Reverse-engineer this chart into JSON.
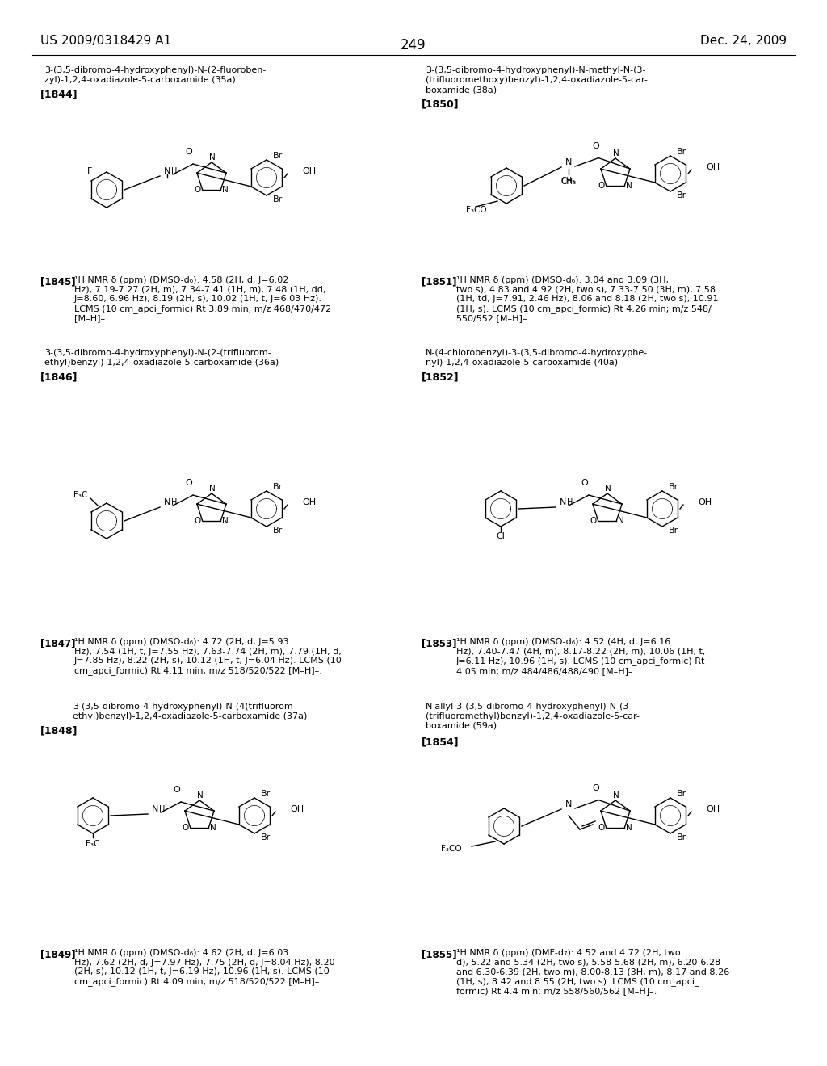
{
  "header_left": "US 2009/0318429 A1",
  "header_right": "Dec. 24, 2009",
  "page_number": "249",
  "bg_color": "#ffffff",
  "entries": [
    {
      "col": 0,
      "row": 0,
      "name": "3-(3,5-dibromo-4-hydroxyphenyl)-N-(2-fluoroben-\nzyl)-1,2,4-oxadiazole-5-carboxamide (35a)",
      "ref": "[1844]",
      "nmr_ref": "[1845]",
      "nmr": "¹H NMR δ (ppm) (DMSO-d₆): 4.58 (2H, d, J=6.02\nHz), 7.19-7.27 (2H, m), 7.34-7.41 (1H, m), 7.48 (1H, dd,\nJ=8.60, 6.96 Hz), 8.19 (2H, s), 10.02 (1H, t, J=6.03 Hz).\nLCMS (10 cm_apci_formic) Rt 3.89 min; m/z 468/470/472\n[M–H]–."
    },
    {
      "col": 1,
      "row": 0,
      "name": "3-(3,5-dibromo-4-hydroxyphenyl)-N-methyl-N-(3-\n(trifluoromethoxy)benzyl)-1,2,4-oxadiazole-5-car-\nboxamide (38a)",
      "ref": "[1850]",
      "nmr_ref": "[1851]",
      "nmr": "¹H NMR δ (ppm) (DMSO-d₆): 3.04 and 3.09 (3H,\ntwo s), 4.83 and 4.92 (2H, two s), 7.33-7.50 (3H, m), 7.58\n(1H, td, J=7.91, 2.46 Hz), 8.06 and 8.18 (2H, two s), 10.91\n(1H, s). LCMS (10 cm_apci_formic) Rt 4.26 min; m/z 548/\n550/552 [M–H]–."
    },
    {
      "col": 0,
      "row": 1,
      "name": "3-(3,5-dibromo-4-hydroxyphenyl)-N-(2-(trifluorom-\nethyl)benzyl)-1,2,4-oxadiazole-5-carboxamide (36a)",
      "ref": "[1846]",
      "nmr_ref": "[1847]",
      "nmr": "¹H NMR δ (ppm) (DMSO-d₆): 4.72 (2H, d, J=5.93\nHz), 7.54 (1H, t, J=7.55 Hz), 7.63-7.74 (2H, m), 7.79 (1H, d,\nJ=7.85 Hz), 8.22 (2H, s), 10.12 (1H, t, J=6.04 Hz). LCMS (10\ncm_apci_formic) Rt 4.11 min; m/z 518/520/522 [M–H]–."
    },
    {
      "col": 1,
      "row": 1,
      "name": "N-(4-chlorobenzyl)-3-(3,5-dibromo-4-hydroxyphe-\nnyl)-1,2,4-oxadiazole-5-carboxamide (40a)",
      "ref": "[1852]",
      "nmr_ref": "[1853]",
      "nmr": "¹H NMR δ (ppm) (DMSO-d₆): 4.52 (4H, d, J=6.16\nHz), 7.40-7.47 (4H, m), 8.17-8.22 (2H, m), 10.06 (1H, t,\nJ=6.11 Hz), 10.96 (1H, s). LCMS (10 cm_apci_formic) Rt\n4.05 min; m/z 484/486/488/490 [M–H]–."
    },
    {
      "col": 0,
      "row": 2,
      "name_pre": "3-(3,5-dibromo-4-hydroxyphenyl)-N-(4(trifluorom-\nethyl)benzyl)-1,2,4-oxadiazole-5-carboxamide (37a)",
      "ref": "[1848]",
      "nmr_ref": "[1849]",
      "nmr": "¹H NMR δ (ppm) (DMSO-d₆): 4.62 (2H, d, J=6.03\nHz), 7.62 (2H, d, J=7.97 Hz), 7.75 (2H, d, J=8.04 Hz), 8.20\n(2H, s), 10.12 (1H, t, J=6.19 Hz), 10.96 (1H, s). LCMS (10\ncm_apci_formic) Rt 4.09 min; m/z 518/520/522 [M–H]–."
    },
    {
      "col": 1,
      "row": 2,
      "name": "N-allyl-3-(3,5-dibromo-4-hydroxyphenyl)-N-(3-\n(trifluoromethyl)benzyl)-1,2,4-oxadiazole-5-car-\nboxamide (59a)",
      "ref": "[1854]",
      "nmr_ref": "[1855]",
      "nmr": "¹H NMR δ (ppm) (DMF-d₇): 4.52 and 4.72 (2H, two\nd), 5.22 and 5.34 (2H, two s), 5.58-5.68 (2H, m), 6.20-6.28\nand 6.30-6.39 (2H, two m), 8.00-8.13 (3H, m), 8.17 and 8.26\n(1H, s), 8.42 and 8.55 (2H, two s). LCMS (10 cm_apci_\nformic) Rt 4.4 min; m/z 558/560/562 [M–H]–."
    }
  ]
}
